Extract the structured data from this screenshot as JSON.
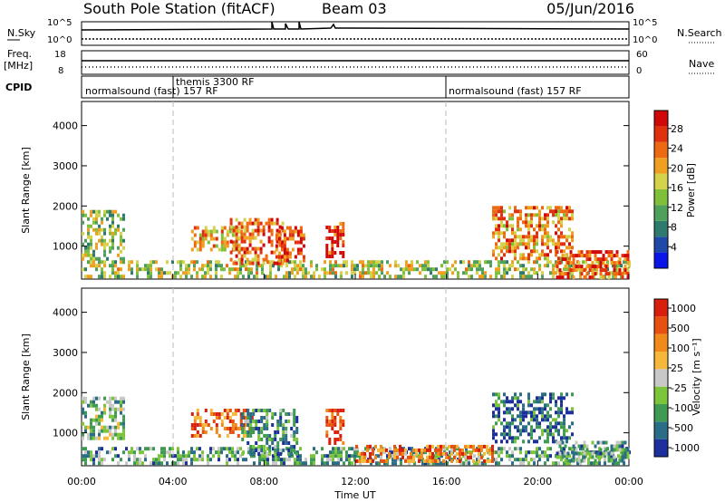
{
  "header": {
    "station": "South Pole Station (fitACF)",
    "beam": "Beam 03",
    "date": "05/Jun/2016"
  },
  "panels": {
    "nsky": {
      "label": "N.Sky",
      "left_ticks": [
        "10^5",
        "10^0"
      ],
      "right_label": "N.Search",
      "right_ticks": [
        "10^5",
        "10^0"
      ]
    },
    "freq": {
      "label_line1": "Freq.",
      "label_line2": "[MHz]",
      "left_ticks": [
        "18",
        "8"
      ],
      "right_label": "Nave",
      "right_ticks": [
        "60",
        "0"
      ]
    },
    "cpid": {
      "label": "CPID",
      "segments": [
        {
          "start_hour": 0,
          "end_hour": 4,
          "text": "normalsound (fast) 157 RF"
        },
        {
          "start_hour": 4,
          "end_hour": 16,
          "text": "themis 3300 RF"
        },
        {
          "start_hour": 16,
          "end_hour": 24,
          "text": "normalsound (fast) 157 RF"
        }
      ]
    }
  },
  "chart_data": [
    {
      "type": "heatmap",
      "title": "",
      "xlabel": "",
      "ylabel": "Slant Range [km]",
      "x_range_hours": [
        0,
        24
      ],
      "ylim": [
        180,
        4600
      ],
      "yticks": [
        1000,
        2000,
        3000,
        4000
      ],
      "colorbar": {
        "label": "Power [dB]",
        "ticks": [
          "4",
          "8",
          "12",
          "16",
          "20",
          "24",
          "28"
        ],
        "colors": [
          "#0a16e8",
          "#1f49a8",
          "#2e7a6e",
          "#4fa05a",
          "#7fbf3a",
          "#d4d24a",
          "#f0a020",
          "#ee6a12",
          "#e0300e",
          "#d00808"
        ]
      },
      "echo_regions": [
        {
          "x": [
            0.0,
            1.8
          ],
          "y": [
            700,
            1900
          ],
          "level": 0.45
        },
        {
          "x": [
            0.0,
            24.0
          ],
          "y": [
            200,
            650
          ],
          "level": 0.5
        },
        {
          "x": [
            4.8,
            7.0
          ],
          "y": [
            900,
            1500
          ],
          "level": 0.65
        },
        {
          "x": [
            6.5,
            8.8
          ],
          "y": [
            600,
            1700
          ],
          "level": 0.75
        },
        {
          "x": [
            8.5,
            9.8
          ],
          "y": [
            600,
            1500
          ],
          "level": 0.85
        },
        {
          "x": [
            10.7,
            11.5
          ],
          "y": [
            700,
            1600
          ],
          "level": 0.9
        },
        {
          "x": [
            18.0,
            21.5
          ],
          "y": [
            700,
            2000
          ],
          "level": 0.7
        },
        {
          "x": [
            20.8,
            24.0
          ],
          "y": [
            250,
            900
          ],
          "level": 0.8
        }
      ]
    },
    {
      "type": "heatmap",
      "title": "",
      "xlabel": "Time UT",
      "ylabel": "Slant Range [km]",
      "x_range_hours": [
        0,
        24
      ],
      "xticks": [
        "00:00",
        "04:00",
        "08:00",
        "12:00",
        "16:00",
        "20:00",
        "00:00"
      ],
      "ylim": [
        180,
        4600
      ],
      "yticks": [
        1000,
        2000,
        3000,
        4000
      ],
      "colorbar": {
        "label": "Velocity [m s⁻¹]",
        "ticks": [
          "1000",
          "500",
          "100",
          "25",
          "-25",
          "-100",
          "-500",
          "-1000"
        ],
        "colors": [
          "#1c2f9c",
          "#2b6c86",
          "#3f9a52",
          "#7cc43a",
          "#c8c8c8",
          "#f5b83a",
          "#f08a1a",
          "#e85010",
          "#d81e0c"
        ]
      },
      "echo_regions": [
        {
          "x": [
            0.0,
            1.8
          ],
          "y": [
            900,
            1900
          ],
          "level": 0.35
        },
        {
          "x": [
            0.0,
            24.0
          ],
          "y": [
            200,
            650
          ],
          "level": 0.3
        },
        {
          "x": [
            4.8,
            7.5
          ],
          "y": [
            900,
            1600
          ],
          "level": 0.8
        },
        {
          "x": [
            7.0,
            9.5
          ],
          "y": [
            500,
            1600
          ],
          "level": 0.25
        },
        {
          "x": [
            10.7,
            11.5
          ],
          "y": [
            700,
            1600
          ],
          "level": 0.9
        },
        {
          "x": [
            12.0,
            18.0
          ],
          "y": [
            300,
            700
          ],
          "level": 0.75
        },
        {
          "x": [
            18.0,
            21.5
          ],
          "y": [
            800,
            2000
          ],
          "level": 0.15
        },
        {
          "x": [
            20.8,
            24.0
          ],
          "y": [
            300,
            800
          ],
          "level": 0.3
        }
      ]
    }
  ]
}
